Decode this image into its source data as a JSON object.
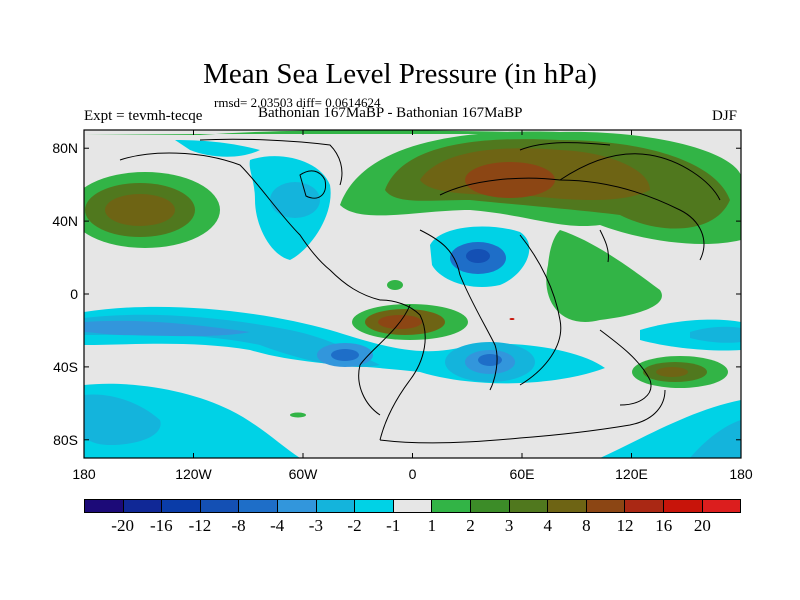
{
  "title": "Mean Sea Level Pressure (in hPa)",
  "stats": "rmsd= 2.03503 diff= 0.0614624",
  "experiment_label": "Expt = tevmh-tecqe",
  "runs_label": "Bathonian 167MaBP - Bathonian 167MaBP",
  "season": "DJF",
  "map": {
    "lat_ticks": [
      "80N",
      "40N",
      "0",
      "40S",
      "80S"
    ],
    "lon_ticks": [
      "180",
      "120W",
      "60W",
      "0",
      "60E",
      "120E",
      "180"
    ]
  },
  "colorbar": {
    "levels": [
      "-20",
      "-16",
      "-12",
      "-8",
      "-4",
      "-3",
      "-2",
      "-1",
      "1",
      "2",
      "3",
      "4",
      "8",
      "12",
      "16",
      "20"
    ],
    "colors": [
      "#1c0a78",
      "#102896",
      "#0a3ca8",
      "#1450b4",
      "#1e6ec8",
      "#3296dc",
      "#14b4dc",
      "#00d2e6",
      "#e6e6e6",
      "#32b446",
      "#3c8c28",
      "#50781e",
      "#6e6414",
      "#8c4614",
      "#aa2814",
      "#c8140a",
      "#dc1e1e"
    ]
  }
}
